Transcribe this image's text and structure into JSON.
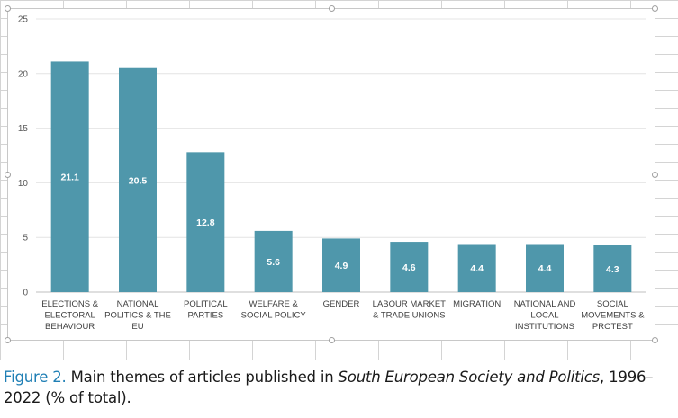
{
  "chart_data": {
    "type": "bar",
    "categories": [
      [
        "ELECTIONS &",
        "ELECTORAL",
        "BEHAVIOUR"
      ],
      [
        "NATIONAL",
        "POLITICS  & THE",
        "EU"
      ],
      [
        "POLITICAL",
        "PARTIES"
      ],
      [
        "WELFARE &",
        "SOCIAL POLICY"
      ],
      [
        "GENDER"
      ],
      [
        "LABOUR MARKET",
        "& TRADE UNIONS"
      ],
      [
        "MIGRATION"
      ],
      [
        "NATIONAL AND",
        "LOCAL",
        "INSTITUTIONS"
      ],
      [
        "SOCIAL",
        "MOVEMENTS &",
        "PROTEST"
      ]
    ],
    "values": [
      21.1,
      20.5,
      12.8,
      5.6,
      4.9,
      4.6,
      4.4,
      4.4,
      4.3
    ],
    "data_labels": [
      "21.1",
      "20.5",
      "12.8",
      "5.6",
      "4.9",
      "4.6",
      "4.4",
      "4.4",
      "4.3"
    ],
    "ylim": [
      0,
      25
    ],
    "yticks": [
      0,
      5,
      10,
      15,
      20,
      25
    ],
    "ytick_labels": [
      "0",
      "5",
      "10",
      "15",
      "20",
      "25"
    ],
    "grid": true,
    "legend": "none",
    "bar_color": "#4f97ab",
    "label_color": "#ffffff",
    "title": "",
    "xlabel": "",
    "ylabel": ""
  },
  "caption": {
    "figure_label": "Figure 2.",
    "text_before": " Main themes of articles published in ",
    "journal": "South European Society and Politics",
    "text_after": ", 1996–2022 (% of total)."
  }
}
